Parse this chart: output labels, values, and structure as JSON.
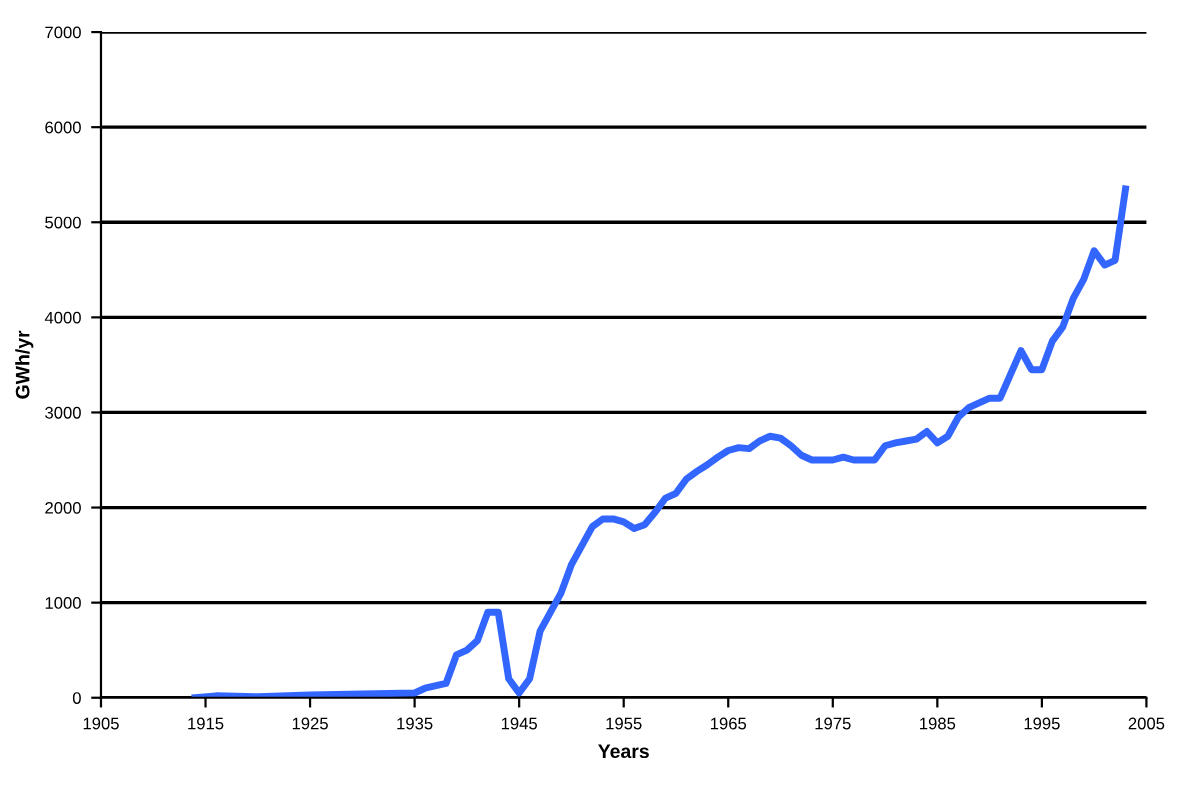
{
  "chart_data": {
    "type": "line",
    "xlabel": "Years",
    "ylabel": "GWh/yr",
    "x": [
      1914,
      1916,
      1920,
      1925,
      1930,
      1935,
      1936,
      1938,
      1939,
      1940,
      1941,
      1942,
      1943,
      1944,
      1945,
      1946,
      1947,
      1948,
      1949,
      1950,
      1951,
      1952,
      1953,
      1954,
      1955,
      1956,
      1957,
      1958,
      1959,
      1960,
      1961,
      1962,
      1963,
      1964,
      1965,
      1966,
      1967,
      1968,
      1969,
      1970,
      1971,
      1972,
      1973,
      1974,
      1975,
      1976,
      1977,
      1978,
      1979,
      1980,
      1981,
      1982,
      1983,
      1984,
      1985,
      1986,
      1987,
      1988,
      1989,
      1990,
      1991,
      1992,
      1993,
      1994,
      1995,
      1996,
      1997,
      1998,
      1999,
      2000,
      2001,
      2002,
      2003
    ],
    "series": [
      {
        "color": "#3366ff",
        "values": [
          0,
          20,
          10,
          30,
          40,
          50,
          100,
          150,
          450,
          500,
          600,
          900,
          900,
          200,
          50,
          200,
          700,
          900,
          1100,
          1400,
          1600,
          1800,
          1880,
          1880,
          1850,
          1780,
          1820,
          1950,
          2100,
          2150,
          2300,
          2380,
          2450,
          2530,
          2600,
          2630,
          2620,
          2700,
          2750,
          2730,
          2650,
          2550,
          2500,
          2500,
          2500,
          2530,
          2500,
          2500,
          2500,
          2650,
          2680,
          2700,
          2720,
          2800,
          2680,
          2750,
          2950,
          3050,
          3100,
          3150,
          3150,
          3400,
          3650,
          3450,
          3450,
          3750,
          3900,
          4200,
          4400,
          4700,
          4550,
          4600,
          5350
        ]
      }
    ],
    "xlim": [
      1905,
      2005
    ],
    "xticks": [
      1905,
      1915,
      1925,
      1935,
      1945,
      1955,
      1965,
      1975,
      1985,
      1995,
      2005
    ],
    "ylim": [
      0,
      7000
    ],
    "yticks": [
      0,
      1000,
      2000,
      3000,
      4000,
      5000,
      6000,
      7000
    ],
    "grid": "y",
    "legend": false,
    "marker": "none",
    "line_style": "solid"
  }
}
